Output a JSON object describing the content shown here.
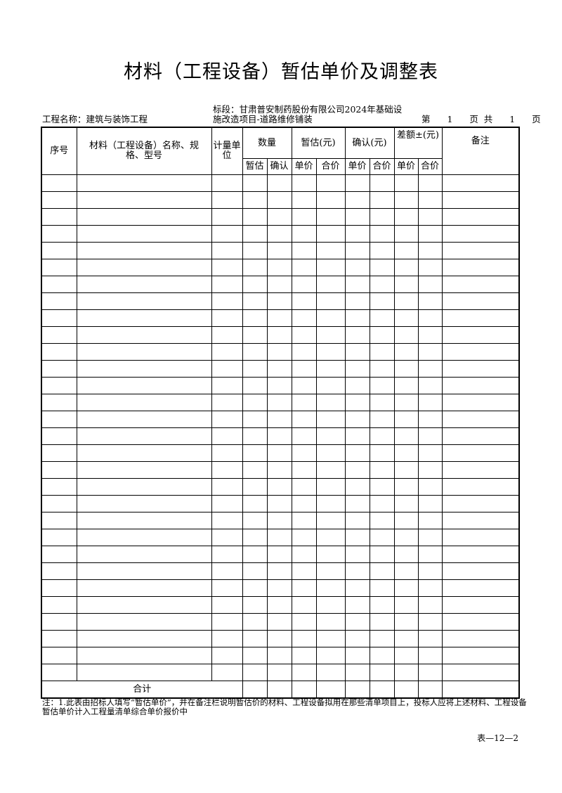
{
  "title": "材料（工程设备）暂估单价及调整表",
  "project_name": "工程名称：建筑与装饰工程",
  "section_line1": "标段：甘肃普安制药股份有限公司2024年基础设",
  "section_line2": "施改造项目-道路维修铺装",
  "page_info": {
    "prefix": "第",
    "page": "1",
    "mid": "页  共",
    "total": "1",
    "suffix": "页"
  },
  "headers": {
    "seq": "序号",
    "name": "材料（工程设备）名称、规格、型号",
    "unit": "计量单位",
    "quantity": "数量",
    "estimate": "暂估(元)",
    "confirm": "确认(元)",
    "difference": "差额±(元)",
    "remark": "备注",
    "sub": [
      "暂估",
      "确认",
      "单价",
      "合价",
      "单价",
      "合价",
      "单价",
      "合价"
    ]
  },
  "total_label": "合计",
  "note": "注：1.此表由招标人填写“暂估单价”，并在备注栏说明暂估价的材料、工程设备拟用在那些清单项目上，投标人应将上述材料、工程设备暂估单价计入工程量清单综合单价报价中",
  "form_number": "表—12—2"
}
